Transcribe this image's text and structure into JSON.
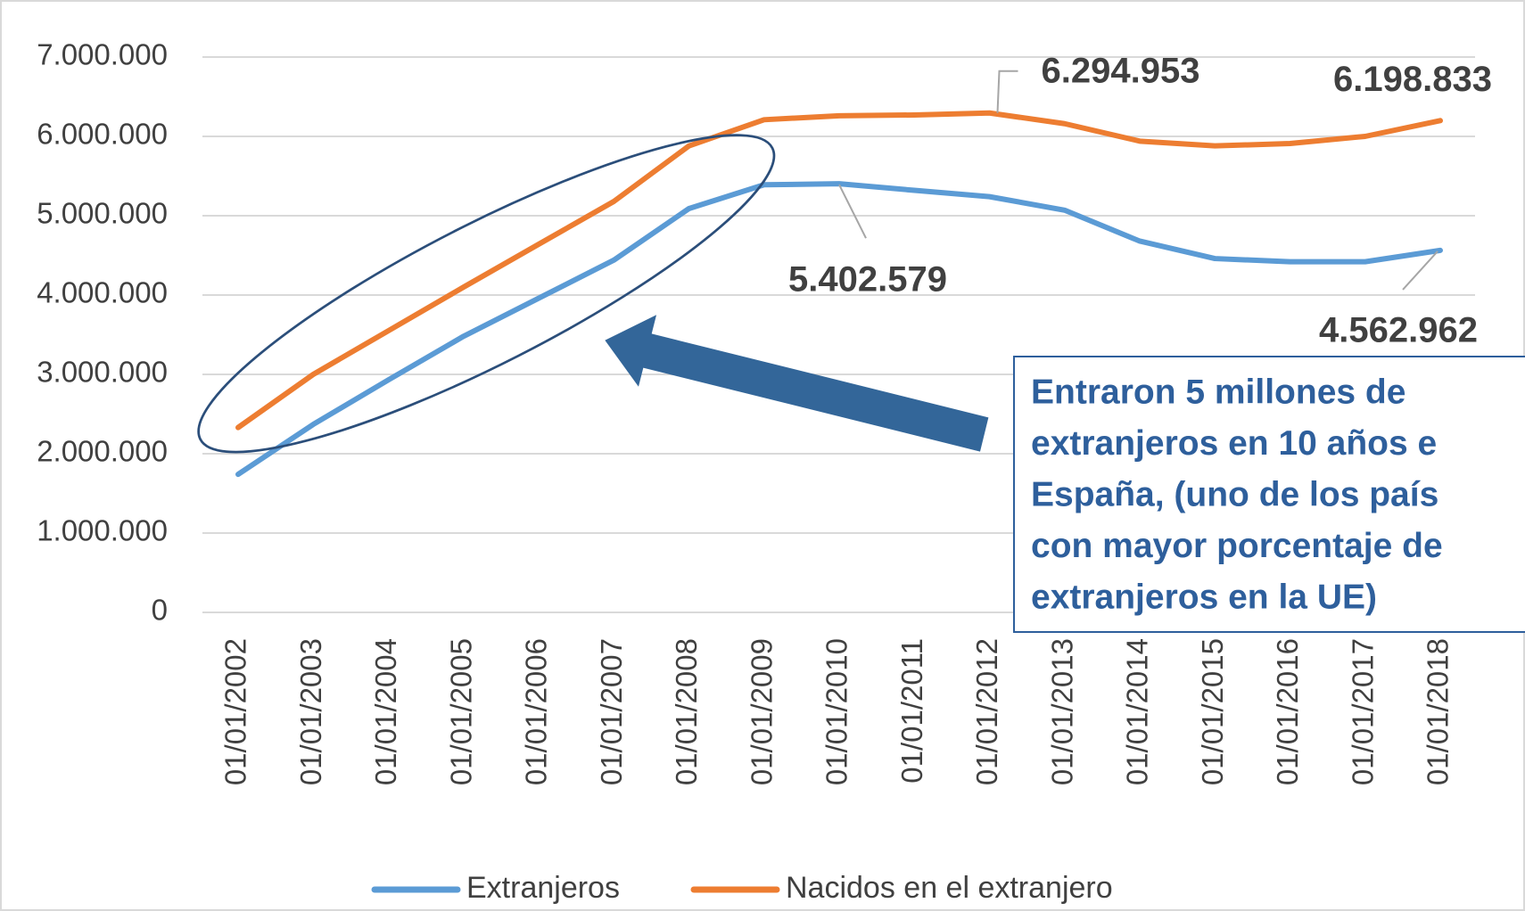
{
  "chart_data": {
    "type": "line",
    "categories": [
      "01/01/2002",
      "01/01/2003",
      "01/01/2004",
      "01/01/2005",
      "01/01/2006",
      "01/01/2007",
      "01/01/2008",
      "01/01/2009",
      "01/01/2010",
      "01/01/2011",
      "01/01/2012",
      "01/01/2013",
      "01/01/2014",
      "01/01/2015",
      "01/01/2016",
      "01/01/2017",
      "01/01/2018"
    ],
    "series": [
      {
        "name": "Extranjeros",
        "color": "#5b9bd5",
        "values": [
          1740000,
          2370000,
          2930000,
          3480000,
          3960000,
          4440000,
          5090000,
          5390000,
          5402579,
          5320000,
          5240000,
          5070000,
          4680000,
          4460000,
          4420000,
          4420000,
          4562962
        ],
        "value_labels": [
          null,
          null,
          null,
          null,
          null,
          null,
          null,
          null,
          "5.402.579",
          null,
          null,
          null,
          null,
          null,
          null,
          null,
          "4.562.962"
        ]
      },
      {
        "name": "Nacidos en el extranjero",
        "color": "#ed7d31",
        "values": [
          2330000,
          3000000,
          3550000,
          4100000,
          4640000,
          5180000,
          5880000,
          6210000,
          6260000,
          6270000,
          6294953,
          6160000,
          5940000,
          5880000,
          5910000,
          6000000,
          6198833
        ],
        "value_labels": [
          null,
          null,
          null,
          null,
          null,
          null,
          null,
          null,
          null,
          null,
          "6.294.953",
          null,
          null,
          null,
          null,
          null,
          "6.198.833"
        ]
      }
    ],
    "ylim": [
      0,
      7000000
    ],
    "yticks": [
      0,
      {
        "value": 1000000,
        "label": "1.000.000"
      },
      {
        "value": 2000000,
        "label": "2.000.000"
      },
      {
        "value": 3000000,
        "label": "3.000.000"
      },
      {
        "value": 4000000,
        "label": "4.000.000"
      },
      {
        "value": 5000000,
        "label": "5.000.000"
      },
      {
        "value": 6000000,
        "label": "6.000.000"
      },
      {
        "value": 7000000,
        "label": "7.000.000"
      }
    ],
    "grid": true,
    "legend": "bottom",
    "annotation": [
      "Entraron 5 millones de",
      "extranjeros en 10 años e",
      "España, (uno de los país",
      "con mayor porcentaje de",
      "extranjeros en la UE)"
    ]
  }
}
